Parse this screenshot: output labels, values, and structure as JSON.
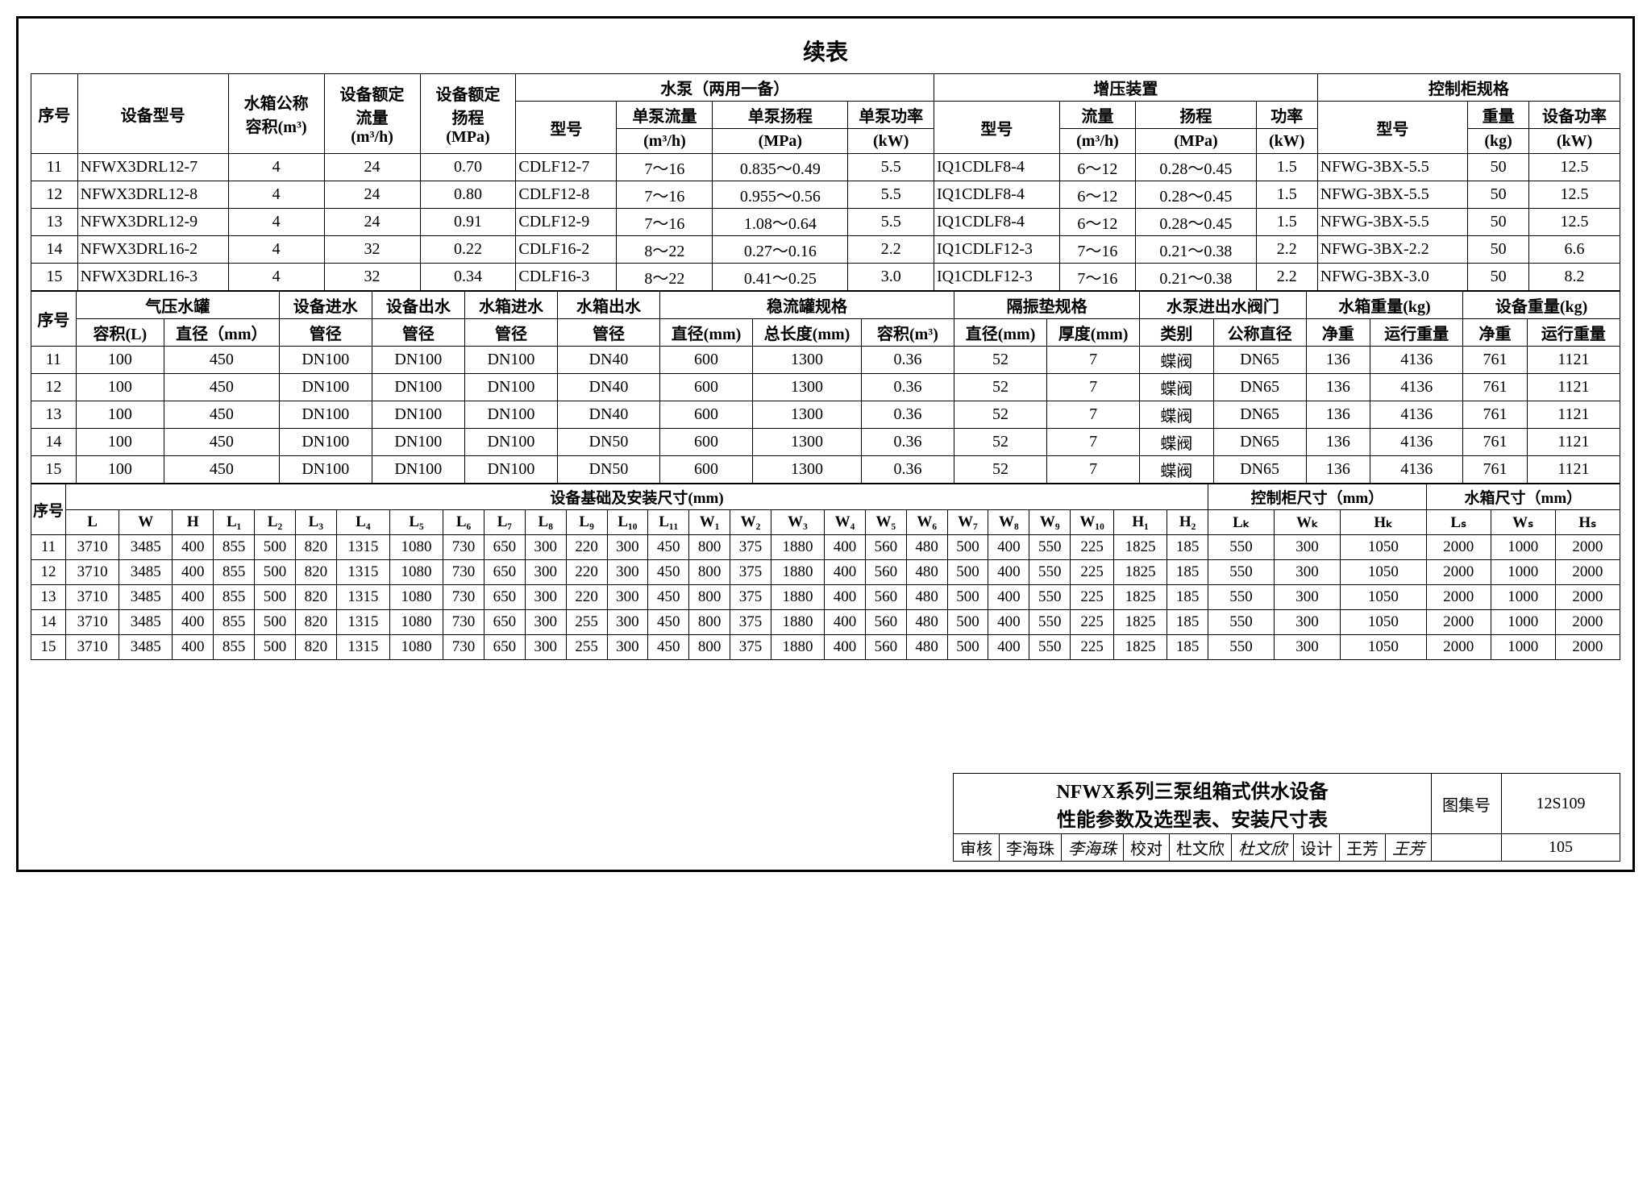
{
  "title": "续表",
  "t1": {
    "headers": {
      "seq": "序号",
      "model": "设备型号",
      "tank_nom": "水箱公称",
      "tank_vol": "容积(m³)",
      "rated_flow_h": "设备额定",
      "rated_flow": "流量",
      "rated_flow_u": "(m³/h)",
      "rated_head_h": "设备额定",
      "rated_head": "扬程",
      "rated_head_u": "(MPa)",
      "pump_group": "水泵（两用一备）",
      "pump_model": "型号",
      "single_flow": "单泵流量",
      "single_flow_u": "(m³/h)",
      "single_head": "单泵扬程",
      "single_head_u": "(MPa)",
      "single_pow": "单泵功率",
      "single_pow_u": "(kW)",
      "boost_group": "增压装置",
      "boost_model": "型号",
      "boost_flow": "流量",
      "boost_flow_u": "(m³/h)",
      "boost_head": "扬程",
      "boost_head_u": "(MPa)",
      "boost_pow": "功率",
      "boost_pow_u": "(kW)",
      "cabinet_group": "控制柜规格",
      "cab_model": "型号",
      "weight": "重量",
      "weight_u": "(kg)",
      "dev_pow": "设备功率",
      "dev_pow_u": "(kW)"
    },
    "rows": [
      {
        "n": "11",
        "m": "NFWX3DRL12-7",
        "v": "4",
        "f": "24",
        "h": "0.70",
        "pm": "CDLF12-7",
        "pf": "7～16",
        "ph": "0.835～0.49",
        "pp": "5.5",
        "bm": "IQ1CDLF8-4",
        "bf": "6～12",
        "bh": "0.28～0.45",
        "bp": "1.5",
        "cm": "NFWG-3BX-5.5",
        "w": "50",
        "dp": "12.5"
      },
      {
        "n": "12",
        "m": "NFWX3DRL12-8",
        "v": "4",
        "f": "24",
        "h": "0.80",
        "pm": "CDLF12-8",
        "pf": "7～16",
        "ph": "0.955～0.56",
        "pp": "5.5",
        "bm": "IQ1CDLF8-4",
        "bf": "6～12",
        "bh": "0.28～0.45",
        "bp": "1.5",
        "cm": "NFWG-3BX-5.5",
        "w": "50",
        "dp": "12.5"
      },
      {
        "n": "13",
        "m": "NFWX3DRL12-9",
        "v": "4",
        "f": "24",
        "h": "0.91",
        "pm": "CDLF12-9",
        "pf": "7～16",
        "ph": "1.08～0.64",
        "pp": "5.5",
        "bm": "IQ1CDLF8-4",
        "bf": "6～12",
        "bh": "0.28～0.45",
        "bp": "1.5",
        "cm": "NFWG-3BX-5.5",
        "w": "50",
        "dp": "12.5"
      },
      {
        "n": "14",
        "m": "NFWX3DRL16-2",
        "v": "4",
        "f": "32",
        "h": "0.22",
        "pm": "CDLF16-2",
        "pf": "8～22",
        "ph": "0.27～0.16",
        "pp": "2.2",
        "bm": "IQ1CDLF12-3",
        "bf": "7～16",
        "bh": "0.21～0.38",
        "bp": "2.2",
        "cm": "NFWG-3BX-2.2",
        "w": "50",
        "dp": "6.6"
      },
      {
        "n": "15",
        "m": "NFWX3DRL16-3",
        "v": "4",
        "f": "32",
        "h": "0.34",
        "pm": "CDLF16-3",
        "pf": "8～22",
        "ph": "0.41～0.25",
        "pp": "3.0",
        "bm": "IQ1CDLF12-3",
        "bf": "7～16",
        "bh": "0.21～0.38",
        "bp": "2.2",
        "cm": "NFWG-3BX-3.0",
        "w": "50",
        "dp": "8.2"
      }
    ]
  },
  "t2": {
    "headers": {
      "seq": "序号",
      "air_tank": "气压水罐",
      "vol": "容积(L)",
      "dia": "直径（mm）",
      "in_pipe": "设备进水",
      "out_pipe": "设备出水",
      "tank_in": "水箱进水",
      "tank_out": "水箱出水",
      "pipe": "管径",
      "steady": "稳流罐规格",
      "s_dia": "直径(mm)",
      "s_len": "总长度(mm)",
      "s_vol": "容积(m³)",
      "pad": "隔振垫规格",
      "p_dia": "直径(mm)",
      "p_thk": "厚度(mm)",
      "valve": "水泵进出水阀门",
      "v_type": "类别",
      "v_nom": "公称直径",
      "tank_w": "水箱重量(kg)",
      "dev_w": "设备重量(kg)",
      "net": "净重",
      "run": "运行重量"
    },
    "rows": [
      {
        "n": "11",
        "v": "100",
        "d": "450",
        "p1": "DN100",
        "p2": "DN100",
        "p3": "DN100",
        "p4": "DN40",
        "sd": "600",
        "sl": "1300",
        "sv": "0.36",
        "pd": "52",
        "pt": "7",
        "vt": "蝶阀",
        "vn": "DN65",
        "tn": "136",
        "tr": "4136",
        "dn": "761",
        "dr": "1121"
      },
      {
        "n": "12",
        "v": "100",
        "d": "450",
        "p1": "DN100",
        "p2": "DN100",
        "p3": "DN100",
        "p4": "DN40",
        "sd": "600",
        "sl": "1300",
        "sv": "0.36",
        "pd": "52",
        "pt": "7",
        "vt": "蝶阀",
        "vn": "DN65",
        "tn": "136",
        "tr": "4136",
        "dn": "761",
        "dr": "1121"
      },
      {
        "n": "13",
        "v": "100",
        "d": "450",
        "p1": "DN100",
        "p2": "DN100",
        "p3": "DN100",
        "p4": "DN40",
        "sd": "600",
        "sl": "1300",
        "sv": "0.36",
        "pd": "52",
        "pt": "7",
        "vt": "蝶阀",
        "vn": "DN65",
        "tn": "136",
        "tr": "4136",
        "dn": "761",
        "dr": "1121"
      },
      {
        "n": "14",
        "v": "100",
        "d": "450",
        "p1": "DN100",
        "p2": "DN100",
        "p3": "DN100",
        "p4": "DN50",
        "sd": "600",
        "sl": "1300",
        "sv": "0.36",
        "pd": "52",
        "pt": "7",
        "vt": "蝶阀",
        "vn": "DN65",
        "tn": "136",
        "tr": "4136",
        "dn": "761",
        "dr": "1121"
      },
      {
        "n": "15",
        "v": "100",
        "d": "450",
        "p1": "DN100",
        "p2": "DN100",
        "p3": "DN100",
        "p4": "DN50",
        "sd": "600",
        "sl": "1300",
        "sv": "0.36",
        "pd": "52",
        "pt": "7",
        "vt": "蝶阀",
        "vn": "DN65",
        "tn": "136",
        "tr": "4136",
        "dn": "761",
        "dr": "1121"
      }
    ]
  },
  "t3": {
    "headers": {
      "seq": "序号",
      "base": "设备基础及安装尺寸(mm)",
      "cab": "控制柜尺寸（mm）",
      "tank": "水箱尺寸（mm）",
      "cols": [
        "L",
        "W",
        "H",
        "L₁",
        "L₂",
        "L₃",
        "L₄",
        "L₅",
        "L₆",
        "L₇",
        "L₈",
        "L₉",
        "L₁₀",
        "L₁₁",
        "W₁",
        "W₂",
        "W₃",
        "W₄",
        "W₅",
        "W₆",
        "W₇",
        "W₈",
        "W₉",
        "W₁₀",
        "H₁",
        "H₂",
        "Lₖ",
        "Wₖ",
        "Hₖ",
        "Lₛ",
        "Wₛ",
        "Hₛ"
      ]
    },
    "rows": [
      [
        "11",
        "3710",
        "3485",
        "400",
        "855",
        "500",
        "820",
        "1315",
        "1080",
        "730",
        "650",
        "300",
        "220",
        "300",
        "450",
        "800",
        "375",
        "1880",
        "400",
        "560",
        "480",
        "500",
        "400",
        "550",
        "225",
        "1825",
        "185",
        "550",
        "300",
        "1050",
        "2000",
        "1000",
        "2000"
      ],
      [
        "12",
        "3710",
        "3485",
        "400",
        "855",
        "500",
        "820",
        "1315",
        "1080",
        "730",
        "650",
        "300",
        "220",
        "300",
        "450",
        "800",
        "375",
        "1880",
        "400",
        "560",
        "480",
        "500",
        "400",
        "550",
        "225",
        "1825",
        "185",
        "550",
        "300",
        "1050",
        "2000",
        "1000",
        "2000"
      ],
      [
        "13",
        "3710",
        "3485",
        "400",
        "855",
        "500",
        "820",
        "1315",
        "1080",
        "730",
        "650",
        "300",
        "220",
        "300",
        "450",
        "800",
        "375",
        "1880",
        "400",
        "560",
        "480",
        "500",
        "400",
        "550",
        "225",
        "1825",
        "185",
        "550",
        "300",
        "1050",
        "2000",
        "1000",
        "2000"
      ],
      [
        "14",
        "3710",
        "3485",
        "400",
        "855",
        "500",
        "820",
        "1315",
        "1080",
        "730",
        "650",
        "300",
        "255",
        "300",
        "450",
        "800",
        "375",
        "1880",
        "400",
        "560",
        "480",
        "500",
        "400",
        "550",
        "225",
        "1825",
        "185",
        "550",
        "300",
        "1050",
        "2000",
        "1000",
        "2000"
      ],
      [
        "15",
        "3710",
        "3485",
        "400",
        "855",
        "500",
        "820",
        "1315",
        "1080",
        "730",
        "650",
        "300",
        "255",
        "300",
        "450",
        "800",
        "375",
        "1880",
        "400",
        "560",
        "480",
        "500",
        "400",
        "550",
        "225",
        "1825",
        "185",
        "550",
        "300",
        "1050",
        "2000",
        "1000",
        "2000"
      ]
    ]
  },
  "footer": {
    "title1": "NFWX系列三泵组箱式供水设备",
    "title2": "性能参数及选型表、安装尺寸表",
    "atlas_lbl": "图集号",
    "atlas": "12S109",
    "review": "审核",
    "reviewer": "李海珠",
    "reviewer_sig": "李海珠",
    "check": "校对",
    "checker": "杜文欣",
    "checker_sig": "杜文欣",
    "design": "设计",
    "designer": "王芳",
    "designer_sig": "王芳",
    "page": "105"
  }
}
